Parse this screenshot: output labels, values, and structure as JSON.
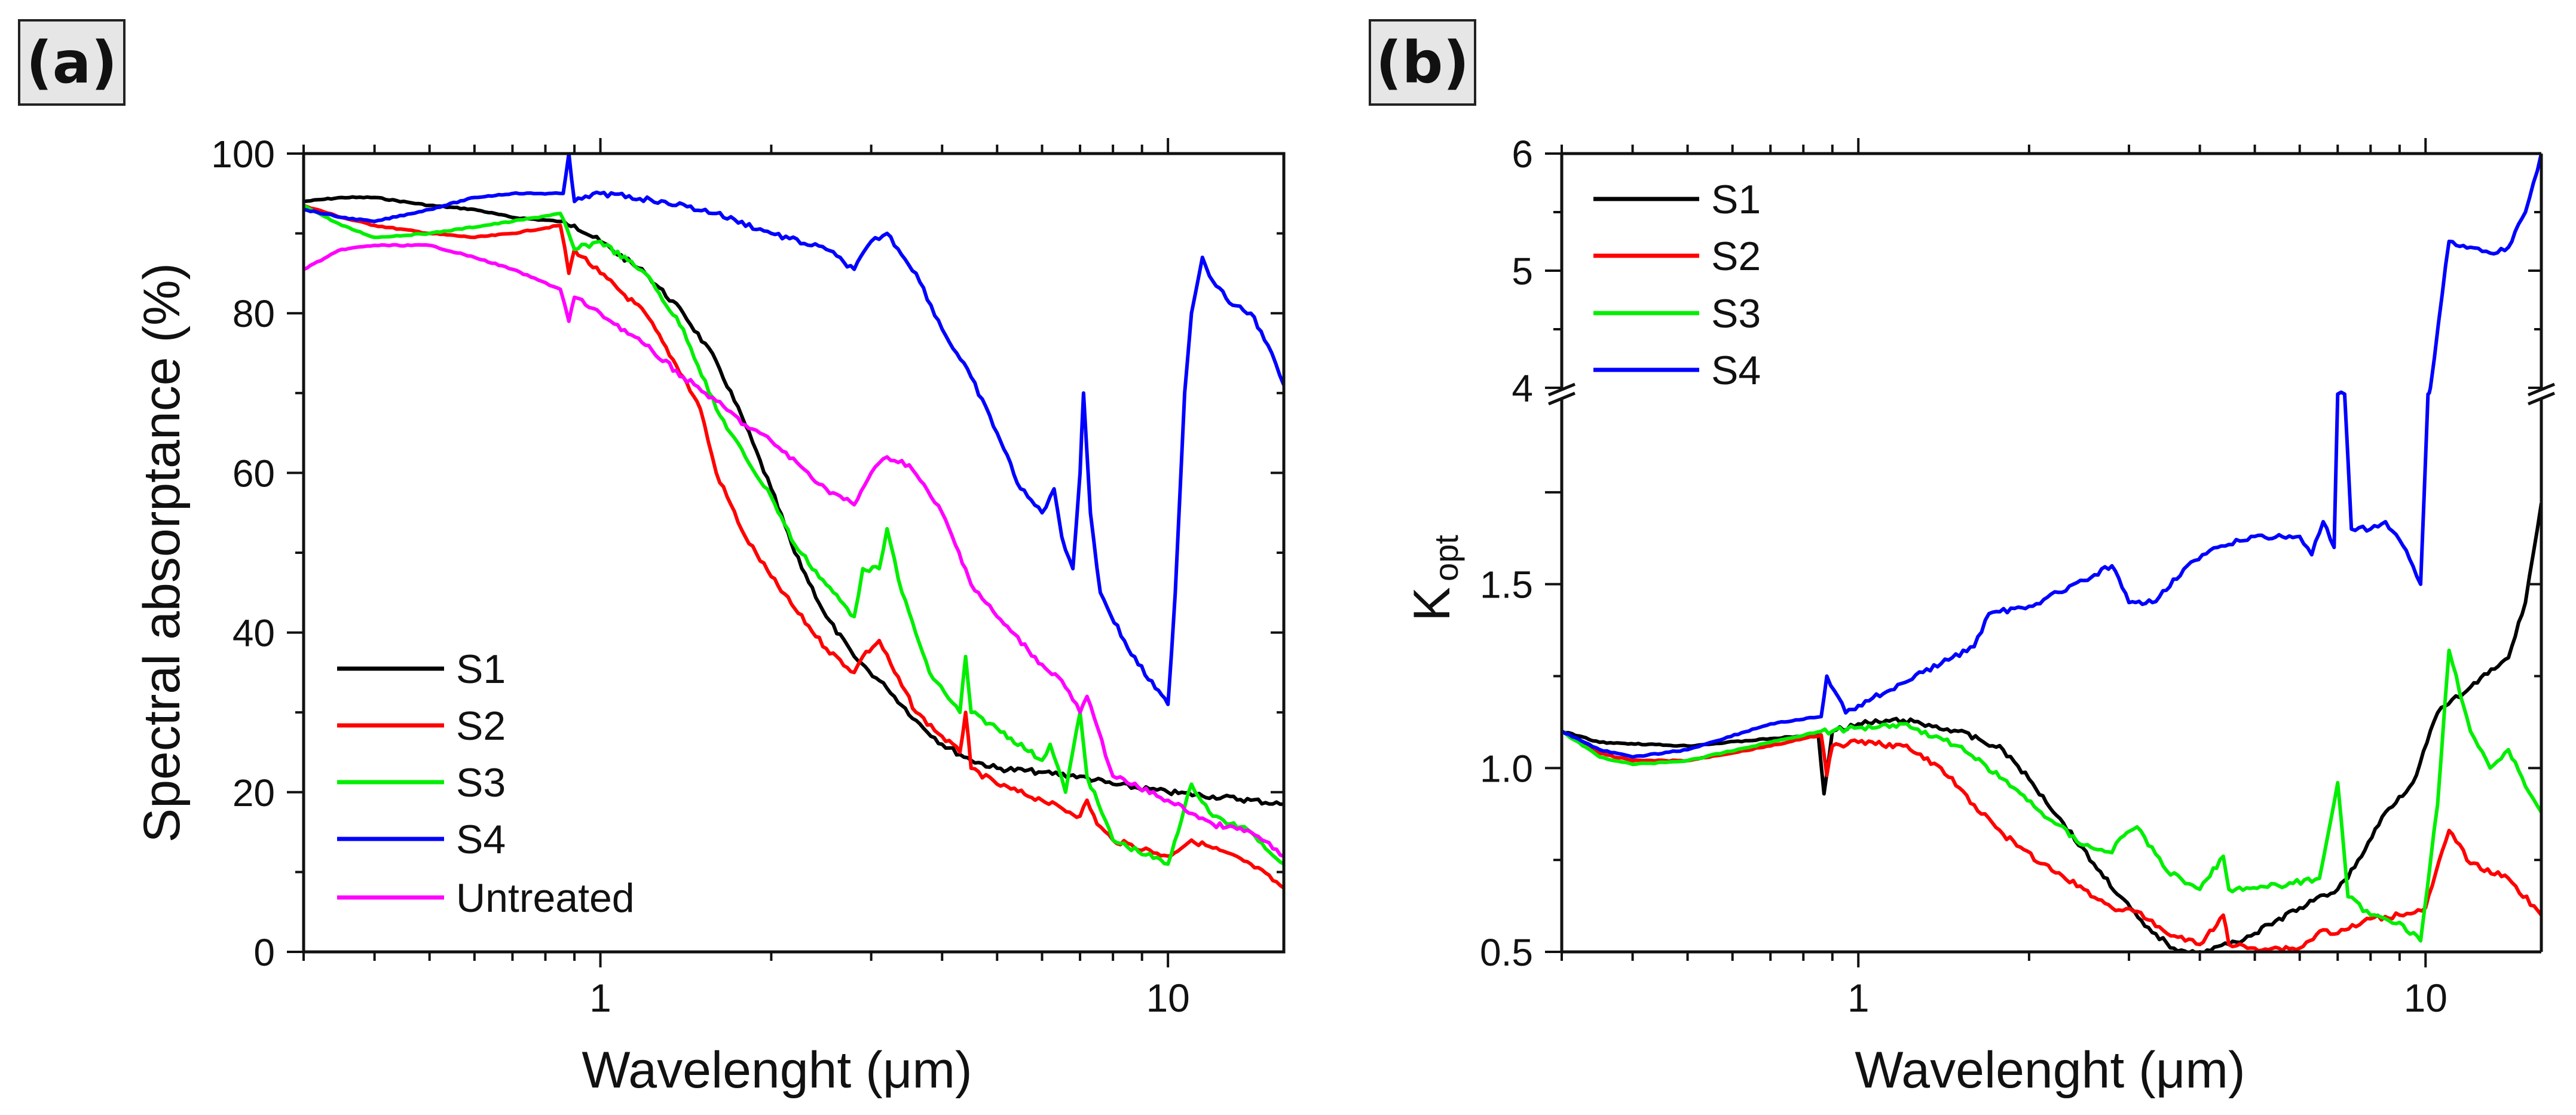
{
  "panels": {
    "a_label": "(a)",
    "b_label": "(b)"
  },
  "chart_data": [
    {
      "id": "a",
      "type": "line",
      "xscale": "log",
      "xlabel": "Wavelenght (μm)",
      "ylabel": "Spectral absorptance (%)",
      "xlim": [
        0.3,
        16
      ],
      "ylim": [
        0,
        100
      ],
      "xticks": [
        {
          "v": 1,
          "label": "1"
        },
        {
          "v": 10,
          "label": "10"
        }
      ],
      "yticks": [
        {
          "v": 0,
          "label": "0"
        },
        {
          "v": 20,
          "label": "20"
        },
        {
          "v": 40,
          "label": "40"
        },
        {
          "v": 60,
          "label": "60"
        },
        {
          "v": 80,
          "label": "80"
        },
        {
          "v": 100,
          "label": "100"
        }
      ],
      "legend": "bottom-left",
      "series": [
        {
          "name": "S1",
          "color": "#000000",
          "x": [
            0.3,
            0.35,
            0.4,
            0.5,
            0.6,
            0.7,
            0.85,
            0.9,
            1,
            1.2,
            1.4,
            1.6,
            1.8,
            2.0,
            2.2,
            2.5,
            2.8,
            3.2,
            3.6,
            4,
            4.5,
            5,
            6,
            7,
            8,
            10,
            12,
            14,
            16
          ],
          "y": [
            94,
            94.5,
            94.5,
            93.5,
            93,
            92,
            91.5,
            91,
            89,
            85,
            80,
            74,
            66,
            58,
            50,
            42,
            37,
            33,
            29,
            26,
            24,
            23,
            22.5,
            22,
            21,
            20,
            19.5,
            19,
            18.5
          ]
        },
        {
          "name": "S2",
          "color": "#ff0000",
          "x": [
            0.3,
            0.35,
            0.4,
            0.5,
            0.6,
            0.7,
            0.85,
            0.88,
            0.9,
            1,
            1.2,
            1.4,
            1.5,
            1.6,
            1.8,
            2.0,
            2.2,
            2.5,
            2.8,
            2.9,
            3.1,
            3.3,
            3.6,
            4,
            4.3,
            4.4,
            4.5,
            5,
            6,
            7,
            7.2,
            7.5,
            8,
            10,
            11,
            12,
            14,
            16
          ],
          "y": [
            93.5,
            92,
            91,
            90,
            89.5,
            90,
            91,
            85,
            88,
            85,
            80,
            72,
            68,
            60,
            52,
            47,
            43,
            38,
            35,
            37,
            39,
            35,
            30,
            27,
            25,
            30,
            23,
            21,
            19,
            17,
            19,
            16,
            14,
            12,
            14,
            13,
            11,
            8
          ]
        },
        {
          "name": "S3",
          "color": "#00ee00",
          "x": [
            0.3,
            0.35,
            0.4,
            0.5,
            0.7,
            0.85,
            0.9,
            1,
            1.2,
            1.4,
            1.6,
            1.8,
            2.0,
            2.2,
            2.5,
            2.8,
            2.9,
            3.1,
            3.2,
            3.4,
            3.8,
            4.3,
            4.4,
            4.5,
            5,
            6,
            6.2,
            6.6,
            7.0,
            7.2,
            8,
            10,
            11,
            12,
            14,
            16
          ],
          "y": [
            93.5,
            91,
            89.5,
            90,
            91.5,
            92.5,
            88,
            89,
            85,
            78,
            68,
            62,
            57,
            51,
            46,
            42,
            48,
            48,
            53,
            45,
            35,
            30,
            37,
            30,
            28,
            24,
            26,
            20,
            30,
            22,
            14,
            11,
            21,
            17,
            15,
            11
          ]
        },
        {
          "name": "S4",
          "color": "#0000ff",
          "x": [
            0.3,
            0.35,
            0.4,
            0.5,
            0.6,
            0.7,
            0.86,
            0.88,
            0.9,
            1,
            1.3,
            1.6,
            2,
            2.5,
            2.8,
            3,
            3.2,
            3.6,
            4,
            4.5,
            5,
            5.5,
            6,
            6.3,
            6.5,
            6.8,
            7.0,
            7.1,
            7.3,
            7.6,
            8.5,
            9.5,
            10,
            10.3,
            10.7,
            11,
            11.5,
            12,
            13,
            14,
            15,
            16
          ],
          "y": [
            93,
            92,
            91.5,
            93,
            94.5,
            95,
            95,
            100,
            94,
            95,
            94,
            92.5,
            90,
            88,
            85.5,
            89,
            90,
            85,
            78,
            72,
            65,
            58,
            55,
            58,
            52,
            48,
            60,
            70,
            55,
            45,
            38,
            33,
            31,
            45,
            70,
            80,
            87,
            84,
            81,
            80,
            76,
            71
          ]
        },
        {
          "name": "Untreated",
          "color": "#ff00ff",
          "x": [
            0.3,
            0.35,
            0.4,
            0.5,
            0.6,
            0.7,
            0.85,
            0.88,
            0.9,
            1,
            1.2,
            1.4,
            1.6,
            1.8,
            2.0,
            2.5,
            2.8,
            3,
            3.2,
            3.5,
            4,
            4.4,
            4.5,
            5,
            6,
            6.5,
            7,
            7.2,
            8,
            10,
            12,
            14,
            16
          ],
          "y": [
            85.5,
            88,
            88.5,
            88.5,
            87,
            85.5,
            83,
            79,
            82,
            80,
            76,
            72,
            69,
            66,
            64,
            58,
            56,
            60,
            62,
            61,
            55,
            48,
            46,
            42,
            36,
            34,
            30,
            32,
            22,
            19,
            16,
            15,
            12
          ]
        }
      ]
    },
    {
      "id": "b",
      "type": "line",
      "xscale": "log",
      "xlabel": "Wavelenght (μm)",
      "ylabel": "K",
      "ylabel_sub": "opt",
      "xlim": [
        0.3,
        16
      ],
      "ylim_lower": [
        0.5,
        2.0
      ],
      "ylim_upper": [
        4,
        6
      ],
      "axis_break": true,
      "xticks": [
        {
          "v": 1,
          "label": "1"
        },
        {
          "v": 10,
          "label": "10"
        }
      ],
      "yticks": [
        {
          "v": 0.5,
          "label": "0.5"
        },
        {
          "v": 1.0,
          "label": "1.0"
        },
        {
          "v": 1.5,
          "label": "1.5"
        },
        {
          "v": 4,
          "label": "4"
        },
        {
          "v": 5,
          "label": "5"
        },
        {
          "v": 6,
          "label": "6"
        }
      ],
      "legend": "top-left",
      "series": [
        {
          "name": "S1",
          "color": "#000000",
          "x": [
            0.3,
            0.35,
            0.5,
            0.7,
            0.85,
            0.87,
            0.9,
            1,
            1.2,
            1.5,
            1.8,
            2.0,
            2.3,
            2.6,
            2.9,
            3.2,
            3.6,
            4,
            4.5,
            5,
            6,
            7,
            7.5,
            8.5,
            9.5,
            10.5,
            12,
            14,
            15,
            16
          ],
          "y": [
            1.1,
            1.07,
            1.06,
            1.08,
            1.09,
            0.93,
            1.1,
            1.12,
            1.13,
            1.1,
            1.05,
            0.97,
            0.85,
            0.74,
            0.65,
            0.57,
            0.51,
            0.5,
            0.52,
            0.55,
            0.62,
            0.67,
            0.73,
            0.88,
            0.96,
            1.15,
            1.22,
            1.3,
            1.45,
            1.72
          ]
        },
        {
          "name": "S2",
          "color": "#ff0000",
          "x": [
            0.3,
            0.35,
            0.4,
            0.5,
            0.7,
            0.86,
            0.88,
            0.9,
            1,
            1.2,
            1.4,
            1.6,
            1.8,
            2.1,
            2.5,
            2.8,
            3.1,
            3.5,
            4,
            4.4,
            4.5,
            5,
            6,
            6.6,
            7,
            8,
            9,
            10,
            11,
            12,
            14,
            16
          ],
          "y": [
            1.1,
            1.04,
            1.02,
            1.02,
            1.06,
            1.09,
            0.98,
            1.06,
            1.07,
            1.06,
            1.0,
            0.9,
            0.82,
            0.74,
            0.67,
            0.62,
            0.61,
            0.55,
            0.52,
            0.6,
            0.52,
            0.51,
            0.51,
            0.56,
            0.55,
            0.59,
            0.6,
            0.62,
            0.83,
            0.74,
            0.7,
            0.6
          ]
        },
        {
          "name": "S3",
          "color": "#00ee00",
          "x": [
            0.3,
            0.35,
            0.4,
            0.5,
            0.7,
            0.86,
            0.9,
            1,
            1.2,
            1.5,
            1.8,
            2.1,
            2.5,
            2.8,
            2.9,
            3.1,
            3.5,
            4,
            4.4,
            4.5,
            5.5,
            6.5,
            7,
            7.3,
            8,
            9,
            9.8,
            10.5,
            11,
            12,
            13,
            14,
            15,
            16
          ],
          "y": [
            1.1,
            1.03,
            1.01,
            1.02,
            1.07,
            1.1,
            1.1,
            1.11,
            1.12,
            1.06,
            0.97,
            0.88,
            0.79,
            0.77,
            0.81,
            0.84,
            0.72,
            0.67,
            0.76,
            0.67,
            0.68,
            0.7,
            0.96,
            0.65,
            0.6,
            0.58,
            0.53,
            0.9,
            1.32,
            1.1,
            1.0,
            1.05,
            0.95,
            0.88
          ]
        },
        {
          "name": "S4",
          "color": "#0000ff",
          "x": [
            0.3,
            0.35,
            0.4,
            0.5,
            0.7,
            0.86,
            0.88,
            0.95,
            1,
            1.3,
            1.6,
            1.7,
            2,
            2.5,
            2.8,
            3.0,
            3.3,
            3.8,
            4.3,
            5,
            6,
            6.3,
            6.6,
            6.9,
            7.0,
            7.2,
            7.4,
            8,
            8.5,
            9.0,
            9.5,
            9.8,
            10.1,
            10.2,
            10.7,
            11,
            12,
            13,
            14,
            15,
            16
          ],
          "y": [
            1.1,
            1.05,
            1.03,
            1.05,
            1.12,
            1.14,
            1.25,
            1.15,
            1.17,
            1.26,
            1.33,
            1.42,
            1.44,
            1.51,
            1.55,
            1.45,
            1.45,
            1.55,
            1.6,
            1.63,
            1.63,
            1.58,
            1.67,
            1.6,
            2.5,
            2.5,
            1.65,
            1.65,
            1.67,
            1.62,
            1.55,
            1.5,
            2.5,
            4.0,
            4.8,
            5.25,
            5.2,
            5.15,
            5.2,
            5.5,
            6.0
          ]
        }
      ]
    }
  ]
}
